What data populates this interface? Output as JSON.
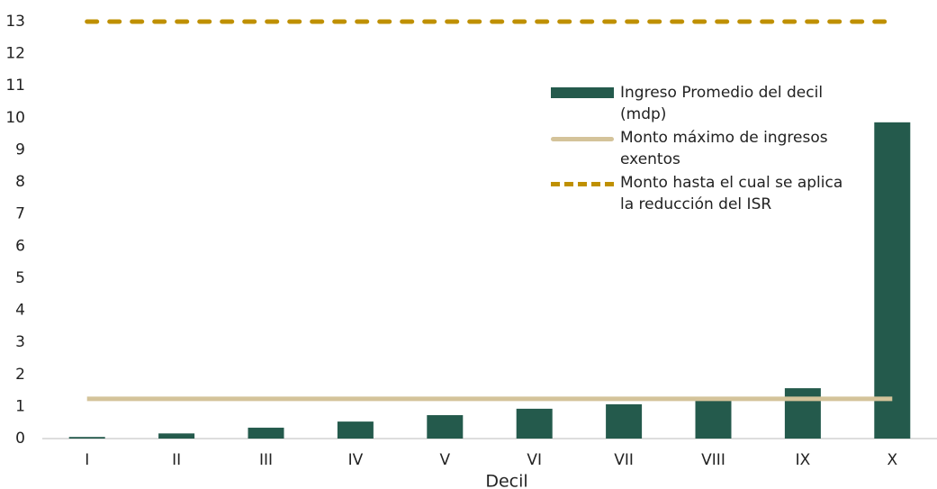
{
  "chart_data": {
    "type": "bar",
    "x_label": "Decil",
    "categories": [
      "I",
      "II",
      "III",
      "IV",
      "V",
      "VI",
      "VII",
      "VIII",
      "IX",
      "X"
    ],
    "series": [
      {
        "name": "Ingreso Promedio del decil (mdp)",
        "type": "bar",
        "color": "#245a4c",
        "values": [
          0.05,
          0.16,
          0.34,
          0.53,
          0.73,
          0.93,
          1.07,
          1.25,
          1.57,
          9.86
        ]
      },
      {
        "name": "Monto máximo de ingresos exentos",
        "type": "line",
        "color": "#d4c39a",
        "dashed": false,
        "values": [
          1.24,
          1.24,
          1.24,
          1.24,
          1.24,
          1.24,
          1.24,
          1.24,
          1.24,
          1.24
        ]
      },
      {
        "name": "Monto hasta el cual se aplica la reducción del ISR",
        "type": "line",
        "color": "#bf9000",
        "dashed": true,
        "values": [
          13,
          13,
          13,
          13,
          13,
          13,
          13,
          13,
          13,
          13
        ]
      }
    ],
    "ylim": [
      0,
      13
    ],
    "yticks": [
      0,
      1,
      2,
      3,
      4,
      5,
      6,
      7,
      8,
      9,
      10,
      11,
      12,
      13
    ],
    "grid": false
  }
}
